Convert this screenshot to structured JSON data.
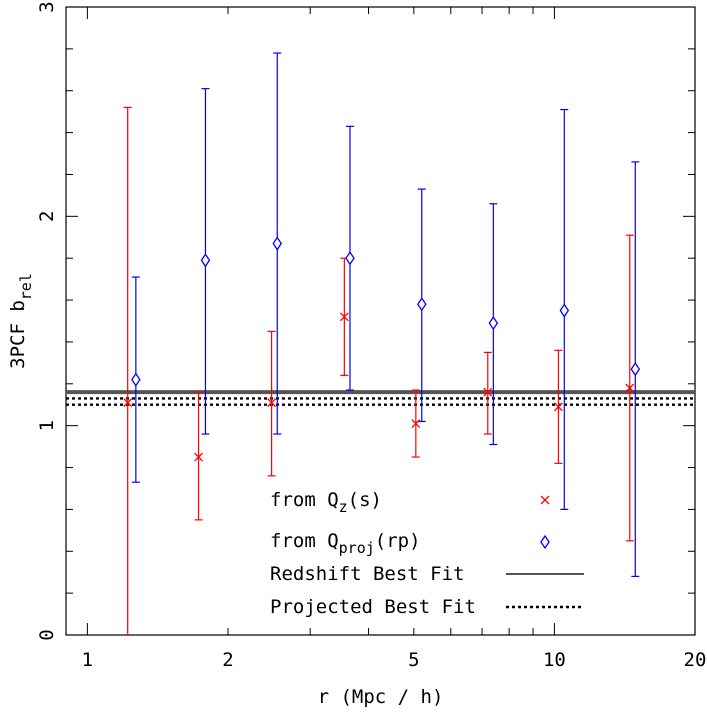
{
  "chart_data": {
    "type": "scatter",
    "x_scale": "log",
    "xlim": [
      0.9,
      20
    ],
    "ylim": [
      0,
      3
    ],
    "x_major_ticks": [
      1,
      2,
      5,
      10,
      20
    ],
    "x_tick_labels": [
      "1",
      "2",
      "5",
      "10",
      "20"
    ],
    "y_major_ticks": [
      0,
      1,
      2,
      3
    ],
    "y_tick_labels": [
      "0",
      "1",
      "2",
      "3"
    ],
    "xlabel": "r (Mpc / h)",
    "ylabel": {
      "main": "3PCF b",
      "sub": "rel"
    },
    "series": [
      {
        "key": "qz",
        "legend": {
          "prefix": "from Q",
          "sub": "z",
          "suffix": "(s)"
        },
        "marker": "x",
        "color": "#ff0000",
        "points": [
          {
            "x": 1.22,
            "y": 1.11,
            "ylo": 0.0,
            "yhi": 2.52
          },
          {
            "x": 1.73,
            "y": 0.85,
            "ylo": 0.55,
            "yhi": 1.16
          },
          {
            "x": 2.48,
            "y": 1.11,
            "ylo": 0.76,
            "yhi": 1.45
          },
          {
            "x": 3.55,
            "y": 1.52,
            "ylo": 1.24,
            "yhi": 1.8
          },
          {
            "x": 5.05,
            "y": 1.01,
            "ylo": 0.85,
            "yhi": 1.17
          },
          {
            "x": 7.2,
            "y": 1.16,
            "ylo": 0.96,
            "yhi": 1.35
          },
          {
            "x": 10.2,
            "y": 1.09,
            "ylo": 0.82,
            "yhi": 1.36
          },
          {
            "x": 14.5,
            "y": 1.18,
            "ylo": 0.45,
            "yhi": 1.91
          }
        ]
      },
      {
        "key": "qproj",
        "legend": {
          "prefix": "from Q",
          "sub": "proj",
          "suffix": "(rp)"
        },
        "marker": "diamond",
        "color": "#0000ff",
        "points": [
          {
            "x": 1.27,
            "y": 1.22,
            "ylo": 0.73,
            "yhi": 1.71
          },
          {
            "x": 1.79,
            "y": 1.79,
            "ylo": 0.96,
            "yhi": 2.61
          },
          {
            "x": 2.55,
            "y": 1.87,
            "ylo": 0.96,
            "yhi": 2.78
          },
          {
            "x": 3.65,
            "y": 1.8,
            "ylo": 1.17,
            "yhi": 2.43
          },
          {
            "x": 5.2,
            "y": 1.58,
            "ylo": 1.02,
            "yhi": 2.13
          },
          {
            "x": 7.4,
            "y": 1.49,
            "ylo": 0.91,
            "yhi": 2.06
          },
          {
            "x": 10.5,
            "y": 1.55,
            "ylo": 0.6,
            "yhi": 2.51
          },
          {
            "x": 14.9,
            "y": 1.27,
            "ylo": 0.28,
            "yhi": 2.26
          }
        ]
      }
    ],
    "lines": [
      {
        "key": "redshift",
        "name": "Redshift Best Fit",
        "y": 1.16,
        "style": "solid",
        "color": "#555555"
      },
      {
        "key": "projected",
        "name": "Projected Best Fit",
        "y_values": [
          1.1,
          1.13
        ],
        "style": "dotted",
        "color": "#000000"
      }
    ],
    "legend_position": "lower-center"
  }
}
